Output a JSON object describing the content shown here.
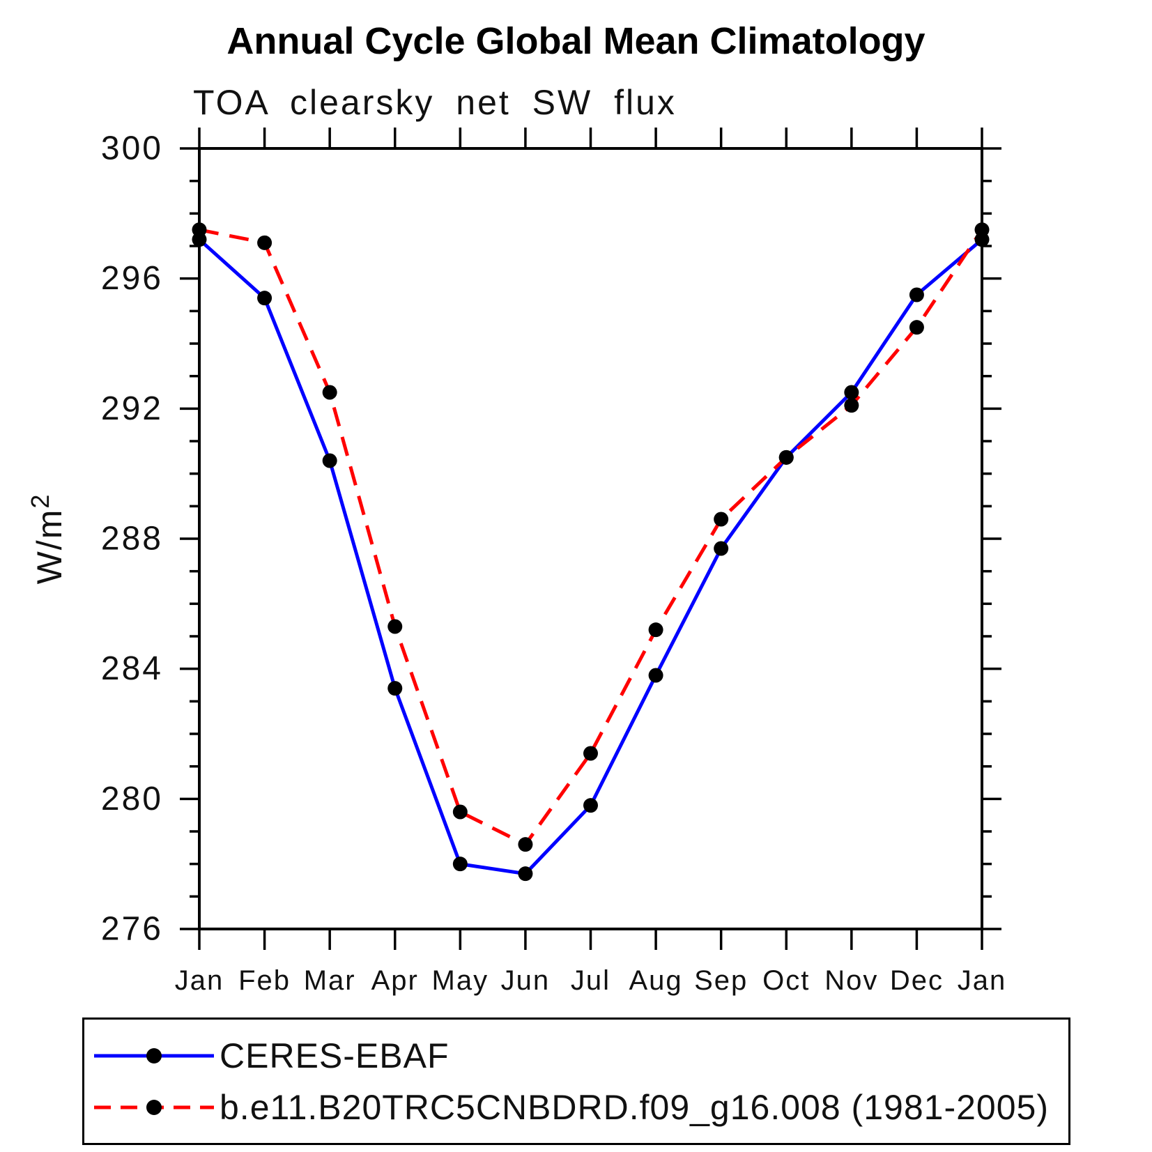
{
  "page": {
    "background": "#ffffff"
  },
  "chart_data": {
    "type": "line",
    "title": "Annual Cycle Global Mean Climatology",
    "subtitle": "TOA clearsky net SW flux",
    "ylabel": "W/m²",
    "xlabel": "",
    "categories": [
      "Jan",
      "Feb",
      "Mar",
      "Apr",
      "May",
      "Jun",
      "Jul",
      "Aug",
      "Sep",
      "Oct",
      "Nov",
      "Dec",
      "Jan"
    ],
    "ylim": [
      276,
      300
    ],
    "yticks": [
      276,
      280,
      284,
      288,
      292,
      296,
      300
    ],
    "y_minor_step": 1,
    "grid": false,
    "legend_position": "bottom-left-box",
    "series": [
      {
        "name": "CERES-EBAF",
        "color": "#0000ff",
        "line_style": "solid",
        "marker": "filled-circle",
        "marker_color": "#000000",
        "values": [
          297.2,
          295.4,
          290.4,
          283.4,
          278.0,
          277.7,
          279.8,
          283.8,
          287.7,
          290.5,
          292.5,
          295.5,
          297.2
        ]
      },
      {
        "name": "b.e11.B20TRC5CNBDRD.f09_g16.008 (1981-2005)",
        "color": "#ff0000",
        "line_style": "dashed",
        "marker": "filled-circle",
        "marker_color": "#000000",
        "values": [
          297.5,
          297.1,
          292.5,
          285.3,
          279.6,
          278.6,
          281.4,
          285.2,
          288.6,
          290.5,
          292.1,
          294.5,
          297.5
        ]
      }
    ]
  }
}
